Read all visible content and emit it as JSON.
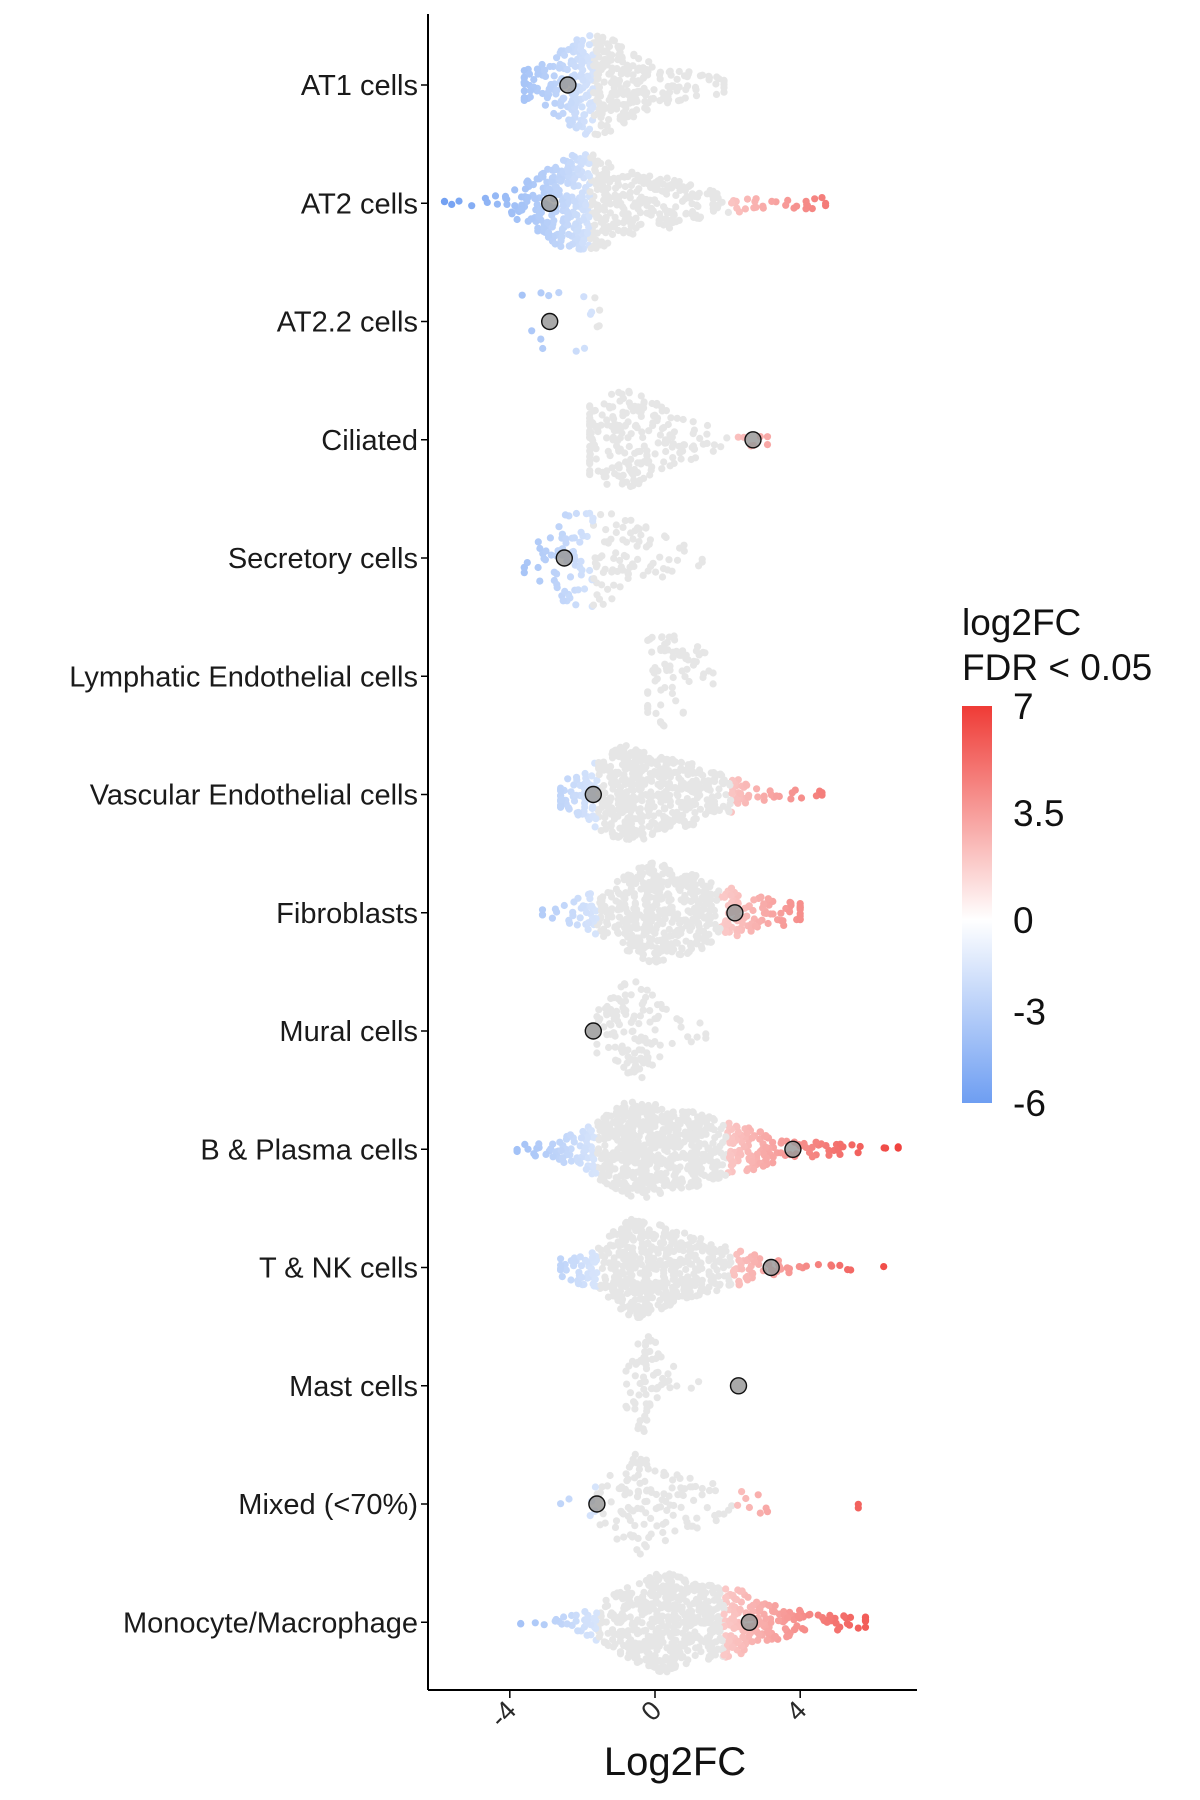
{
  "chart_data": {
    "type": "scatter",
    "subtype": "beeswarm",
    "orientation": "horizontal",
    "xlabel": "Log2FC",
    "ylabel": "",
    "xlim": [
      -6.2,
      7.3
    ],
    "x_ticks": [
      -4,
      0,
      4
    ],
    "x_tick_labels": [
      "-4",
      "0",
      "4"
    ],
    "categories": [
      "AT1 cells",
      "AT2 cells",
      "AT2.2 cells",
      "Ciliated",
      "Secretory cells",
      "Lymphatic Endothelial cells",
      "Vascular Endothelial cells",
      "Fibroblasts",
      "Mural cells",
      "B & Plasma cells",
      "T & NK cells",
      "Mast cells",
      "Mixed (<70%)",
      "Monocyte/Macrophage"
    ],
    "nonsignificant_color": "#e6e6e6",
    "median_points": [
      {
        "category": "AT1 cells",
        "x": -2.4
      },
      {
        "category": "AT2 cells",
        "x": -2.9
      },
      {
        "category": "AT2.2 cells",
        "x": -2.9
      },
      {
        "category": "Ciliated",
        "x": 2.7
      },
      {
        "category": "Secretory cells",
        "x": -2.5
      },
      {
        "category": "Vascular Endothelial cells",
        "x": -1.7
      },
      {
        "category": "Fibroblasts",
        "x": 2.2
      },
      {
        "category": "Mural cells",
        "x": -1.7
      },
      {
        "category": "B & Plasma cells",
        "x": 3.8
      },
      {
        "category": "T & NK cells",
        "x": 3.2
      },
      {
        "category": "Mast cells",
        "x": 2.3
      },
      {
        "category": "Mixed (<70%)",
        "x": -1.6
      },
      {
        "category": "Monocyte/Macrophage",
        "x": 2.6
      }
    ],
    "distributions": [
      {
        "category": "AT1 cells",
        "range": [
          -3.6,
          1.9
        ],
        "center": -1.4,
        "n": 420,
        "spread": 1.0,
        "skew": 0.8,
        "sig_low": -1.7,
        "sig_high": null,
        "outliers": []
      },
      {
        "category": "AT2 cells",
        "range": [
          -5.8,
          4.7
        ],
        "center": -1.6,
        "n": 560,
        "spread": 1.2,
        "skew": 1.0,
        "sig_low": -1.8,
        "sig_high": 2.1,
        "outliers": [
          -5.6,
          -5.4,
          3.6,
          3.9,
          4.2,
          4.6
        ]
      },
      {
        "category": "AT2.2 cells",
        "range": [
          -3.8,
          -0.6
        ],
        "center": -2.0,
        "n": 0,
        "spread": 0.5,
        "skew": 0,
        "sig_low": -1.7,
        "sig_high": null,
        "outliers": []
      },
      {
        "category": "Ciliated",
        "range": [
          -1.8,
          3.1
        ],
        "center": -0.6,
        "n": 220,
        "spread": 0.9,
        "skew": 1.1,
        "sig_low": null,
        "sig_high": 2.1,
        "outliers": [
          2.9,
          3.1
        ]
      },
      {
        "category": "Secretory cells",
        "range": [
          -3.6,
          1.3
        ],
        "center": -1.6,
        "n": 150,
        "spread": 1.0,
        "skew": 0.6,
        "sig_low": -1.7,
        "sig_high": null,
        "outliers": [
          0.8,
          1.2
        ]
      },
      {
        "category": "Lymphatic Endothelial cells",
        "range": [
          -0.2,
          1.6
        ],
        "center": 0.3,
        "n": 70,
        "spread": 0.45,
        "skew": 0.9,
        "sig_low": null,
        "sig_high": null,
        "outliers": []
      },
      {
        "category": "Vascular Endothelial cells",
        "range": [
          -2.6,
          4.6
        ],
        "center": -0.4,
        "n": 600,
        "spread": 1.0,
        "skew": 1.2,
        "sig_low": -1.6,
        "sig_high": 2.1,
        "outliers": []
      },
      {
        "category": "Fibroblasts",
        "range": [
          -3.1,
          4.0
        ],
        "center": 0.3,
        "n": 560,
        "spread": 1.15,
        "skew": 0.9,
        "sig_low": -1.6,
        "sig_high": 1.8,
        "outliers": [
          -3.1,
          -2.5
        ]
      },
      {
        "category": "Mural cells",
        "range": [
          -1.6,
          1.4
        ],
        "center": -0.6,
        "n": 120,
        "spread": 0.45,
        "skew": 0.9,
        "sig_low": null,
        "sig_high": null,
        "outliers": [
          0.9,
          1.4
        ]
      },
      {
        "category": "B & Plasma cells",
        "range": [
          -3.8,
          6.7
        ],
        "center": 0.0,
        "n": 800,
        "spread": 1.3,
        "skew": 1.1,
        "sig_low": -1.6,
        "sig_high": 2.0,
        "outliers": [
          -3.8,
          -3.5,
          -3.2
        ]
      },
      {
        "category": "T & NK cells",
        "range": [
          -2.6,
          6.3
        ],
        "center": -0.1,
        "n": 600,
        "spread": 0.95,
        "skew": 1.4,
        "sig_low": -1.6,
        "sig_high": 2.1,
        "outliers": []
      },
      {
        "category": "Mast cells",
        "range": [
          -0.8,
          1.2
        ],
        "center": -0.2,
        "n": 70,
        "spread": 0.25,
        "skew": 0.5,
        "sig_low": null,
        "sig_high": null,
        "outliers": [
          0.6,
          1.0
        ]
      },
      {
        "category": "Mixed (<70%)",
        "range": [
          -2.6,
          5.6
        ],
        "center": -0.1,
        "n": 140,
        "spread": 0.9,
        "skew": 0.4,
        "sig_low": -1.6,
        "sig_high": 2.2,
        "outliers": [
          2.5,
          2.9,
          3.1,
          5.6
        ]
      },
      {
        "category": "Monocyte/Macrophage",
        "range": [
          -3.7,
          5.8
        ],
        "center": 0.6,
        "n": 750,
        "spread": 1.25,
        "skew": 1.0,
        "sig_low": -1.6,
        "sig_high": 1.9,
        "outliers": [
          -3.7,
          4.8,
          5.2,
          5.6
        ]
      }
    ],
    "legend": {
      "title_line1": "log2FC",
      "title_line2": "FDR < 0.05",
      "ticks": [
        "7",
        "3.5",
        "0",
        "-3",
        "-6"
      ],
      "tick_values": [
        7,
        3.5,
        0,
        -3,
        -6
      ],
      "min": -6,
      "max": 7,
      "colors": {
        "low": "#6e9ef2",
        "mid": "#ffffff",
        "high": "#ef3b36"
      },
      "placement": "right"
    },
    "grid": false
  }
}
